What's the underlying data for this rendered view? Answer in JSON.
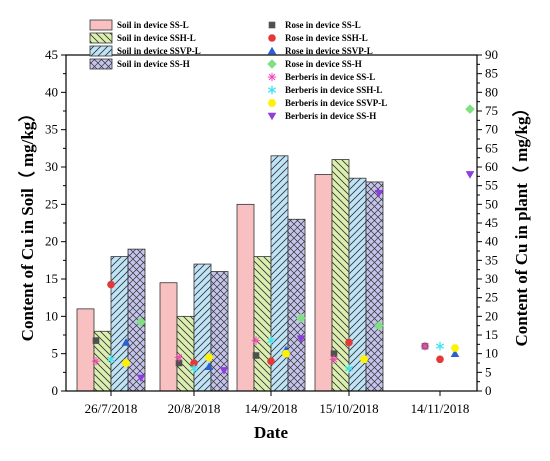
{
  "chart_data": {
    "type": "bar",
    "xlabel": "Date",
    "ylabel_left": "Content of Cu in Soil（ mg/kg）",
    "ylabel_right": "Content of Cu in plant（ mg/kg）",
    "ylim_left": [
      0,
      45
    ],
    "ylim_right": [
      0,
      90
    ],
    "yticks_left": [
      "0",
      "5",
      "10",
      "15",
      "20",
      "25",
      "30",
      "35",
      "40",
      "45"
    ],
    "yticks_right": [
      "0",
      "5",
      "10",
      "15",
      "20",
      "25",
      "30",
      "35",
      "40",
      "45",
      "50",
      "55",
      "60",
      "65",
      "70",
      "75",
      "80",
      "85",
      "90"
    ],
    "categories": [
      "26/7/2018",
      "20/8/2018",
      "14/9/2018",
      "15/10/2018",
      "14/11/2018"
    ],
    "bar_series": [
      {
        "name": "Soil in device SS-L",
        "values": [
          11,
          14.5,
          25,
          29,
          null
        ],
        "color": "#f8c0c0",
        "pattern": "none"
      },
      {
        "name": "Soil in device SSH-L",
        "values": [
          8,
          10,
          18,
          31,
          null
        ],
        "color": "#dcefb0",
        "pattern": "backslash"
      },
      {
        "name": "Soil in device SSVP-L",
        "values": [
          18,
          17,
          31.5,
          28.5,
          null
        ],
        "color": "#bfe3f7",
        "pattern": "slash"
      },
      {
        "name": "Soil in device SS-H",
        "values": [
          19,
          16,
          23,
          28,
          null
        ],
        "color": "#c4c4ec",
        "pattern": "cross"
      }
    ],
    "point_series": [
      {
        "name": "Rose in device SS-L",
        "marker": "square",
        "color": "#505050",
        "values": [
          13.5,
          7.5,
          9.5,
          10,
          12
        ]
      },
      {
        "name": "Rose in device SSH-L",
        "marker": "circle",
        "color": "#e23a3a",
        "values": [
          28.5,
          7.5,
          8,
          13,
          8.5
        ]
      },
      {
        "name": "Rose in device SSVP-L",
        "marker": "triangle-up",
        "color": "#2a5fcf",
        "values": [
          13,
          6.5,
          11,
          null,
          10
        ]
      },
      {
        "name": "Rose in device SS-H",
        "marker": "diamond",
        "color": "#7fe07f",
        "values": [
          18.5,
          null,
          19.5,
          17.5,
          75.5
        ]
      },
      {
        "name": "Berberis in device SS-L",
        "marker": "asterisk",
        "color": "#f04fb0",
        "values": [
          8,
          9,
          13.5,
          8.5,
          12
        ]
      },
      {
        "name": "Berberis in device SSH-L",
        "marker": "star",
        "color": "#3fe3f0",
        "values": [
          8.5,
          6,
          13.5,
          6,
          12
        ]
      },
      {
        "name": "Berberis in device SSVP-L",
        "marker": "hexagon",
        "color": "#fff200",
        "values": [
          7.5,
          9,
          10,
          8.5,
          11.5
        ]
      },
      {
        "name": "Berberis in device SS-H",
        "marker": "triangle-down",
        "color": "#8e3ee0",
        "values": [
          3.5,
          5.5,
          14,
          53,
          58
        ]
      }
    ],
    "legend_position": "top-left-inside",
    "grid": false
  }
}
